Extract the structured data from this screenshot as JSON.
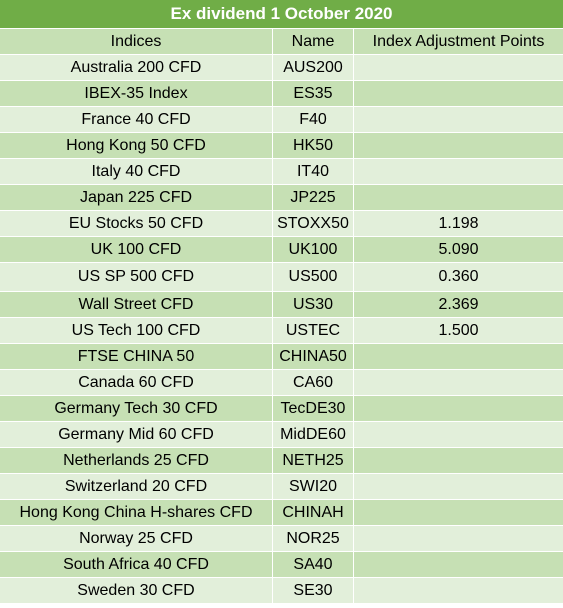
{
  "title": "Ex dividend 1 October 2020",
  "columns": [
    "Indices",
    "Name",
    "Index Adjustment Points"
  ],
  "rows": [
    {
      "index": "Australia 200 CFD",
      "name": "AUS200",
      "points": ""
    },
    {
      "index": "IBEX-35 Index",
      "name": "ES35",
      "points": ""
    },
    {
      "index": "France 40 CFD",
      "name": "F40",
      "points": ""
    },
    {
      "index": "Hong Kong 50 CFD",
      "name": "HK50",
      "points": ""
    },
    {
      "index": "Italy 40 CFD",
      "name": "IT40",
      "points": ""
    },
    {
      "index": "Japan 225 CFD",
      "name": "JP225",
      "points": ""
    },
    {
      "index": "EU Stocks 50 CFD",
      "name": "STOXX50",
      "points": "1.198"
    },
    {
      "index": "UK 100 CFD",
      "name": "UK100",
      "points": "5.090"
    },
    {
      "index": "US SP 500 CFD",
      "name": "US500",
      "points": "0.360"
    },
    {
      "index": "Wall Street CFD",
      "name": "US30",
      "points": "2.369"
    },
    {
      "index": "US Tech 100 CFD",
      "name": "USTEC",
      "points": "1.500"
    },
    {
      "index": "FTSE CHINA 50",
      "name": "CHINA50",
      "points": ""
    },
    {
      "index": "Canada 60 CFD",
      "name": "CA60",
      "points": ""
    },
    {
      "index": "Germany Tech 30 CFD",
      "name": "TecDE30",
      "points": ""
    },
    {
      "index": "Germany Mid 60 CFD",
      "name": "MidDE60",
      "points": ""
    },
    {
      "index": "Netherlands 25 CFD",
      "name": "NETH25",
      "points": ""
    },
    {
      "index": "Switzerland 20 CFD",
      "name": "SWI20",
      "points": ""
    },
    {
      "index": "Hong Kong China H-shares CFD",
      "name": "CHINAH",
      "points": ""
    },
    {
      "index": "Norway 25 CFD",
      "name": "NOR25",
      "points": ""
    },
    {
      "index": "South Africa 40 CFD",
      "name": "SA40",
      "points": ""
    },
    {
      "index": "Sweden 30 CFD",
      "name": "SE30",
      "points": ""
    }
  ]
}
